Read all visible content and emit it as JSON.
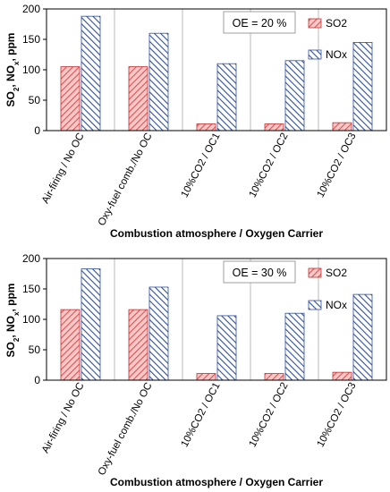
{
  "chart_data": [
    {
      "type": "bar",
      "annotation": "OE = 20 %",
      "categories": [
        "Air-firing / No OC",
        "Oxy-fuel comb./No OC",
        "10%CO2 / OC1",
        "10%CO2 / OC2",
        "10%CO2 / OC3"
      ],
      "series": [
        {
          "name": "SO2",
          "values": [
            105,
            105,
            11,
            11,
            13
          ],
          "color": "#e05050",
          "pattern": "diagonal-up"
        },
        {
          "name": "NOx",
          "values": [
            188,
            160,
            110,
            115,
            145
          ],
          "color": "#2f4f9f",
          "pattern": "diagonal-down"
        }
      ],
      "xlabel": "Combustion atmosphere / Oxygen Carrier",
      "ylabel": "SO2, NOx, ppm",
      "ylim": [
        0,
        200
      ],
      "yticks": [
        0,
        50,
        100,
        150,
        200
      ],
      "grid": "vertical separators between categories",
      "legend": "top-right"
    },
    {
      "type": "bar",
      "annotation": "OE = 30 %",
      "categories": [
        "Air-firing / No OC",
        "Oxy-fuel comb./No OC",
        "10%CO2 / OC1",
        "10%CO2 / OC2",
        "10%CO2 / OC3"
      ],
      "series": [
        {
          "name": "SO2",
          "values": [
            116,
            116,
            11,
            11,
            13
          ],
          "color": "#e05050",
          "pattern": "diagonal-up"
        },
        {
          "name": "NOx",
          "values": [
            183,
            153,
            106,
            110,
            141
          ],
          "color": "#2f4f9f",
          "pattern": "diagonal-down"
        }
      ],
      "xlabel": "Combustion atmosphere / Oxygen Carrier",
      "ylabel": "SO2, NOx, ppm",
      "ylim": [
        0,
        200
      ],
      "yticks": [
        0,
        50,
        100,
        150,
        200
      ],
      "grid": "vertical separators between categories",
      "legend": "top-right"
    }
  ]
}
